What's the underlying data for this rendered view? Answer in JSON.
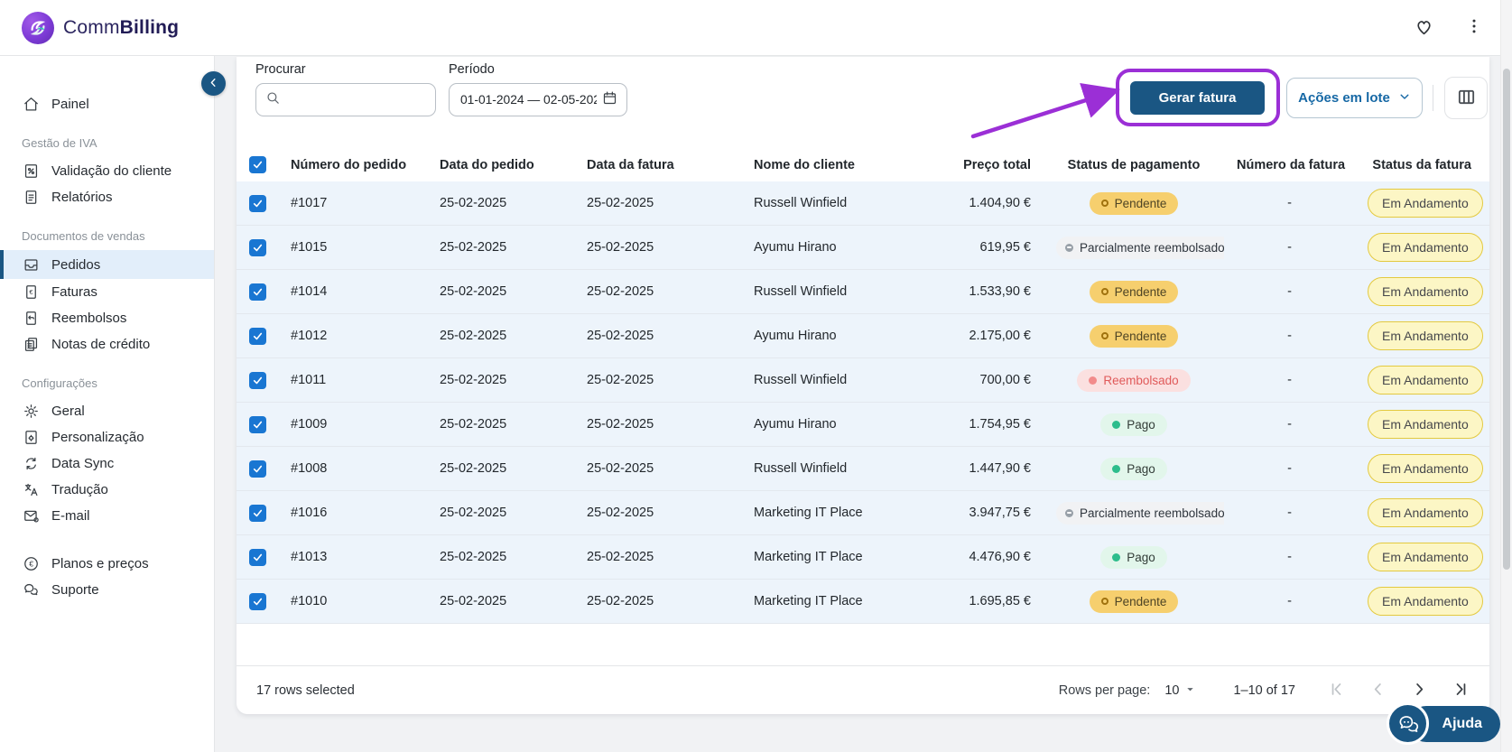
{
  "brand": {
    "name_regular": "Comm",
    "name_bold": "Billing"
  },
  "colors": {
    "primary_blue": "#1a5683",
    "annotation_purple": "#9b2fd6",
    "checkbox_blue": "#1976d2",
    "selected_row_bg": "#edf4fb",
    "status_pending_bg": "#f6cf6e",
    "status_paid_bg": "#e2f6eb",
    "status_refunded_bg": "#fbe0e0",
    "invoice_status_bg": "#fcf6c5"
  },
  "sidebar": {
    "sections": [
      {
        "label": null,
        "items": [
          {
            "label": "Painel",
            "icon": "home"
          }
        ]
      },
      {
        "label": "Gestão de IVA",
        "items": [
          {
            "label": "Validação do cliente",
            "icon": "percent-doc"
          },
          {
            "label": "Relatórios",
            "icon": "report"
          }
        ]
      },
      {
        "label": "Documentos de vendas",
        "items": [
          {
            "label": "Pedidos",
            "icon": "orders-tray",
            "selected": true
          },
          {
            "label": "Faturas",
            "icon": "invoice-euro"
          },
          {
            "label": "Reembolsos",
            "icon": "refund-receipt"
          },
          {
            "label": "Notas de crédito",
            "icon": "credit-note"
          }
        ]
      },
      {
        "label": "Configurações",
        "items": [
          {
            "label": "Geral",
            "icon": "gear"
          },
          {
            "label": "Personalização",
            "icon": "doc-gear"
          },
          {
            "label": "Data Sync",
            "icon": "sync"
          },
          {
            "label": "Tradução",
            "icon": "translate"
          },
          {
            "label": "E-mail",
            "icon": "mail"
          }
        ]
      },
      {
        "label": null,
        "items": [
          {
            "label": "Planos e preços",
            "icon": "euro-circle"
          },
          {
            "label": "Suporte",
            "icon": "support-chat"
          }
        ]
      }
    ]
  },
  "toolbar": {
    "search_label": "Procurar",
    "search_placeholder": "",
    "period_label": "Período",
    "period_value": "01-01-2024 — 02-05-202",
    "generate_invoice_label": "Gerar fatura",
    "bulk_actions_label": "Ações em lote"
  },
  "table": {
    "columns": [
      "Número do pedido",
      "Data do pedido",
      "Data da fatura",
      "Nome do cliente",
      "Preço total",
      "Status de pagamento",
      "Número da fatura",
      "Status da fatura"
    ],
    "rows": [
      {
        "order": "#1017",
        "order_date": "25-02-2025",
        "invoice_date": "25-02-2025",
        "customer": "Russell Winfield",
        "total": "1.404,90 €",
        "payment_status": "Pendente",
        "payment_variant": "pending",
        "invoice_number": "-",
        "invoice_status": "Em Andamento"
      },
      {
        "order": "#1015",
        "order_date": "25-02-2025",
        "invoice_date": "25-02-2025",
        "customer": "Ayumu Hirano",
        "total": "619,95 €",
        "payment_status": "Parcialmente reembolsado",
        "payment_variant": "partial",
        "invoice_number": "-",
        "invoice_status": "Em Andamento"
      },
      {
        "order": "#1014",
        "order_date": "25-02-2025",
        "invoice_date": "25-02-2025",
        "customer": "Russell Winfield",
        "total": "1.533,90 €",
        "payment_status": "Pendente",
        "payment_variant": "pending",
        "invoice_number": "-",
        "invoice_status": "Em Andamento"
      },
      {
        "order": "#1012",
        "order_date": "25-02-2025",
        "invoice_date": "25-02-2025",
        "customer": "Ayumu Hirano",
        "total": "2.175,00 €",
        "payment_status": "Pendente",
        "payment_variant": "pending",
        "invoice_number": "-",
        "invoice_status": "Em Andamento"
      },
      {
        "order": "#1011",
        "order_date": "25-02-2025",
        "invoice_date": "25-02-2025",
        "customer": "Russell Winfield",
        "total": "700,00 €",
        "payment_status": "Reembolsado",
        "payment_variant": "refunded",
        "invoice_number": "-",
        "invoice_status": "Em Andamento"
      },
      {
        "order": "#1009",
        "order_date": "25-02-2025",
        "invoice_date": "25-02-2025",
        "customer": "Ayumu Hirano",
        "total": "1.754,95 €",
        "payment_status": "Pago",
        "payment_variant": "paid",
        "invoice_number": "-",
        "invoice_status": "Em Andamento"
      },
      {
        "order": "#1008",
        "order_date": "25-02-2025",
        "invoice_date": "25-02-2025",
        "customer": "Russell Winfield",
        "total": "1.447,90 €",
        "payment_status": "Pago",
        "payment_variant": "paid",
        "invoice_number": "-",
        "invoice_status": "Em Andamento"
      },
      {
        "order": "#1016",
        "order_date": "25-02-2025",
        "invoice_date": "25-02-2025",
        "customer": "Marketing IT Place",
        "total": "3.947,75 €",
        "payment_status": "Parcialmente reembolsado",
        "payment_variant": "partial",
        "invoice_number": "-",
        "invoice_status": "Em Andamento"
      },
      {
        "order": "#1013",
        "order_date": "25-02-2025",
        "invoice_date": "25-02-2025",
        "customer": "Marketing IT Place",
        "total": "4.476,90 €",
        "payment_status": "Pago",
        "payment_variant": "paid",
        "invoice_number": "-",
        "invoice_status": "Em Andamento"
      },
      {
        "order": "#1010",
        "order_date": "25-02-2025",
        "invoice_date": "25-02-2025",
        "customer": "Marketing IT Place",
        "total": "1.695,85 €",
        "payment_status": "Pendente",
        "payment_variant": "pending",
        "invoice_number": "-",
        "invoice_status": "Em Andamento"
      }
    ],
    "footer": {
      "selected_text": "17 rows selected",
      "rows_per_page_label": "Rows per page:",
      "rows_per_page_value": "10",
      "range_text": "1–10 of 17"
    }
  },
  "help": {
    "label": "Ajuda"
  }
}
